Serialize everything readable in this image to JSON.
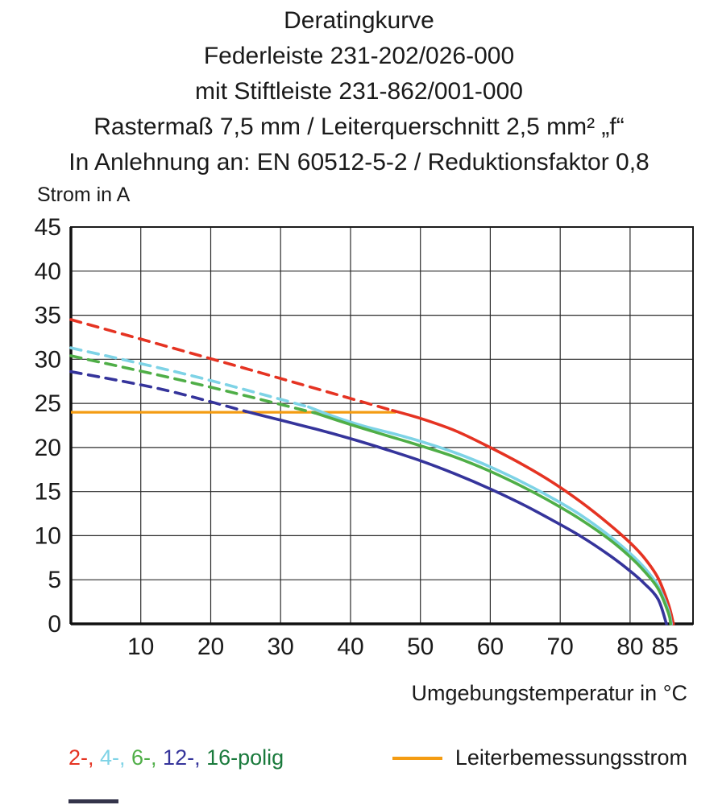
{
  "title_lines": [
    "Deratingkurve",
    "Federleiste 231-202/026-000",
    "mit Stiftleiste 231-862/001-000",
    "Rastermaß 7,5 mm / Leiterquerschnitt 2,5 mm² „f“",
    "In Anlehnung an: EN 60512-5-2 / Reduktionsfaktor 0,8"
  ],
  "chart_data": {
    "type": "line",
    "title": "Deratingkurve",
    "xlabel": "Umgebungstemperatur in °C",
    "ylabel": "Strom in A",
    "xlim": [
      0,
      89
    ],
    "ylim": [
      0,
      45
    ],
    "x_ticks": [
      10,
      20,
      30,
      40,
      50,
      60,
      70,
      80,
      85
    ],
    "x_gridlines": [
      10,
      20,
      30,
      40,
      50,
      60,
      70,
      80
    ],
    "y_ticks": [
      0,
      5,
      10,
      15,
      20,
      25,
      30,
      35,
      40,
      45
    ],
    "grid": true,
    "legend_position": "bottom",
    "rated_current": {
      "name": "Leiterbemessungsstrom",
      "color": "#f49c12",
      "y": 24,
      "x_start": 0,
      "x_end": 46.5
    },
    "series": [
      {
        "name": "2-polig",
        "color": "#e53322",
        "dashed": [
          [
            0,
            34.5
          ],
          [
            23,
            29.4
          ],
          [
            46,
            24.2
          ]
        ],
        "solid": [
          [
            46,
            24.2
          ],
          [
            50,
            23.3
          ],
          [
            55,
            21.9
          ],
          [
            60,
            20.0
          ],
          [
            65,
            17.9
          ],
          [
            69,
            16.0
          ],
          [
            73,
            13.8
          ],
          [
            77,
            11.3
          ],
          [
            80,
            9.2
          ],
          [
            82,
            7.5
          ],
          [
            84,
            5.2
          ],
          [
            85.5,
            2.2
          ],
          [
            86.2,
            0
          ]
        ]
      },
      {
        "name": "4-polig",
        "color": "#7ed3e6",
        "dashed": [
          [
            0,
            31.3
          ],
          [
            17,
            28.2
          ],
          [
            34,
            24.6
          ]
        ],
        "solid": [
          [
            34,
            24.6
          ],
          [
            38,
            23.4
          ],
          [
            42,
            22.4
          ],
          [
            46,
            21.6
          ],
          [
            50,
            20.7
          ],
          [
            55,
            19.4
          ],
          [
            60,
            17.8
          ],
          [
            65,
            15.9
          ],
          [
            69,
            14.2
          ],
          [
            73,
            12.3
          ],
          [
            77,
            10.0
          ],
          [
            80,
            8.0
          ],
          [
            82,
            6.4
          ],
          [
            84,
            4.3
          ],
          [
            85.5,
            1.5
          ],
          [
            85.9,
            0
          ]
        ]
      },
      {
        "name": "6-polig",
        "color": "#4fae47",
        "dashed": [
          [
            0,
            30.4
          ],
          [
            17,
            27.4
          ],
          [
            35,
            23.9
          ]
        ],
        "solid": [
          [
            35,
            23.9
          ],
          [
            40,
            22.6
          ],
          [
            45,
            21.4
          ],
          [
            50,
            20.2
          ],
          [
            55,
            18.9
          ],
          [
            60,
            17.3
          ],
          [
            65,
            15.4
          ],
          [
            69,
            13.7
          ],
          [
            73,
            11.8
          ],
          [
            77,
            9.6
          ],
          [
            80,
            7.6
          ],
          [
            82,
            6.0
          ],
          [
            84,
            4.0
          ],
          [
            85.5,
            1.2
          ],
          [
            85.8,
            0
          ]
        ]
      },
      {
        "name": "12-polig",
        "color": "#35349b",
        "dashed": [
          [
            0,
            28.6
          ],
          [
            13,
            26.6
          ],
          [
            25,
            24.1
          ]
        ],
        "solid": [
          [
            25,
            24.1
          ],
          [
            30,
            23.1
          ],
          [
            35,
            22.1
          ],
          [
            40,
            21.0
          ],
          [
            45,
            19.8
          ],
          [
            50,
            18.5
          ],
          [
            55,
            17.0
          ],
          [
            60,
            15.3
          ],
          [
            65,
            13.4
          ],
          [
            69,
            11.7
          ],
          [
            73,
            9.9
          ],
          [
            77,
            7.8
          ],
          [
            80,
            6.0
          ],
          [
            82,
            4.6
          ],
          [
            84,
            2.8
          ],
          [
            85.2,
            0
          ]
        ]
      },
      {
        "name": "16-polig",
        "color": "#1a7a3c",
        "dashed": [],
        "solid": []
      }
    ]
  },
  "legend": {
    "pole_items": [
      {
        "label": "2-, ",
        "color": "#e53322"
      },
      {
        "label": "4-, ",
        "color": "#7ed3e6"
      },
      {
        "label": "6-, ",
        "color": "#4fae47"
      },
      {
        "label": "12-, ",
        "color": "#35349b"
      },
      {
        "label": "16-polig",
        "color": "#1a7a3c"
      }
    ],
    "rated_label": "Leiterbemessungsstrom"
  }
}
